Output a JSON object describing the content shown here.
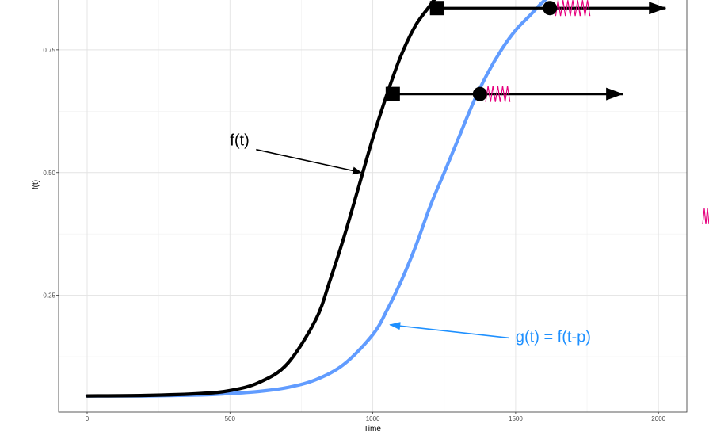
{
  "chart_data": {
    "type": "line",
    "title": "",
    "xlabel": "Time",
    "ylabel": "f(t)",
    "xlim": [
      -100,
      2100
    ],
    "ylim": [
      0.0,
      0.9
    ],
    "x_ticks": [
      0,
      500,
      1000,
      1500,
      2000
    ],
    "x_tick_labels": [
      "0",
      "500",
      "1000",
      "1500",
      "2000"
    ],
    "y_ticks": [
      0.25,
      0.5,
      0.75
    ],
    "y_tick_labels": [
      "0.25",
      "0.50",
      "0.75"
    ],
    "grid": true,
    "series": [
      {
        "color": "#000000",
        "x": [
          0,
          200,
          400,
          500,
          600,
          700,
          800,
          850,
          900,
          950,
          1000,
          1050,
          1100,
          1150,
          1200,
          1250
        ],
        "y": [
          0.045,
          0.046,
          0.05,
          0.056,
          0.072,
          0.11,
          0.2,
          0.28,
          0.37,
          0.47,
          0.57,
          0.66,
          0.74,
          0.8,
          0.84,
          0.88
        ]
      },
      {
        "color": "#619cff",
        "x": [
          0,
          200,
          400,
          500,
          600,
          700,
          800,
          900,
          1000,
          1050,
          1100,
          1150,
          1200,
          1250,
          1300,
          1350,
          1400,
          1450,
          1500,
          1550,
          1600,
          1650,
          1700
        ],
        "y": [
          0.045,
          0.045,
          0.047,
          0.05,
          0.054,
          0.062,
          0.078,
          0.11,
          0.17,
          0.22,
          0.28,
          0.35,
          0.43,
          0.5,
          0.57,
          0.64,
          0.7,
          0.75,
          0.79,
          0.82,
          0.85,
          0.87,
          0.885
        ]
      }
    ],
    "markers": [
      {
        "shape": "square",
        "x": 1225,
        "y": 0.835,
        "color": "#000000"
      },
      {
        "shape": "circle",
        "x": 1620,
        "y": 0.835,
        "color": "#000000"
      },
      {
        "shape": "square",
        "x": 1070,
        "y": 0.66,
        "color": "#000000"
      },
      {
        "shape": "circle",
        "x": 1375,
        "y": 0.66,
        "color": "#000000"
      }
    ],
    "arrows": [
      {
        "x_from": 1225,
        "x_to": 2025,
        "y": 0.835,
        "color": "#000000"
      },
      {
        "x_from": 1070,
        "x_to": 1875,
        "y": 0.66,
        "color": "#000000"
      }
    ],
    "zigzags": [
      {
        "x_from": 1640,
        "x_to": 1760,
        "y": 0.835,
        "color": "#e6007e"
      },
      {
        "x_from": 1395,
        "x_to": 1480,
        "y": 0.66,
        "color": "#e6007e"
      }
    ],
    "annotations": [
      {
        "text": "f(t)",
        "x": 500,
        "y": 0.555,
        "color": "#000000",
        "arrow_to": {
          "x": 960,
          "y": 0.5
        }
      },
      {
        "text": "g(t) = f(t-p)",
        "x": 1500,
        "y": 0.155,
        "color": "#1e90ff",
        "arrow_to": {
          "x": 1060,
          "y": 0.19
        }
      }
    ]
  }
}
